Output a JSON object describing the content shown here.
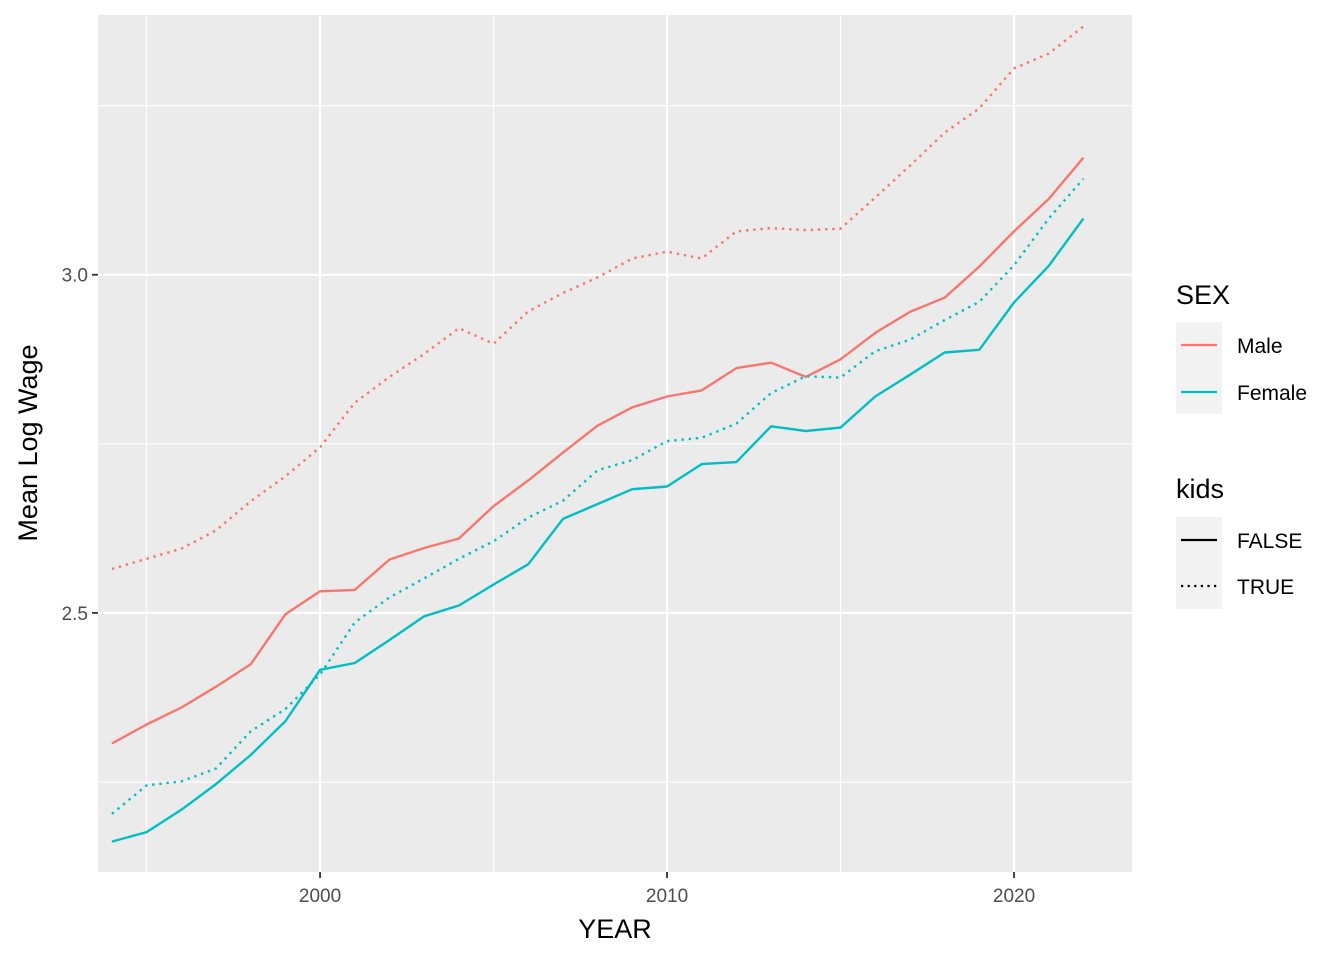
{
  "chart_data": {
    "type": "line",
    "title": "",
    "xlabel": "YEAR",
    "ylabel": "Mean Log Wage",
    "xlim": [
      1993.6,
      2023.4
    ],
    "ylim": [
      2.117,
      3.384
    ],
    "x_major_ticks": [
      2000,
      2010,
      2020
    ],
    "x_minor_ticks": [
      1995,
      2005,
      2015
    ],
    "y_major_ticks": [
      2.5,
      3.0
    ],
    "y_minor_ticks": [
      2.25,
      2.75,
      3.25
    ],
    "x_tick_labels": [
      "2000",
      "2010",
      "2020"
    ],
    "y_tick_labels": [
      "2.5",
      "3.0"
    ],
    "grid": true,
    "x": [
      1994,
      1995,
      1996,
      1997,
      1998,
      1999,
      2000,
      2001,
      2002,
      2003,
      2004,
      2005,
      2006,
      2007,
      2008,
      2009,
      2010,
      2011,
      2012,
      2013,
      2014,
      2015,
      2016,
      2017,
      2018,
      2019,
      2020,
      2021,
      2022
    ],
    "series": [
      {
        "sex": "Male",
        "kids": "FALSE",
        "color": "#F8766D",
        "dash": "solid",
        "values": [
          2.307,
          2.335,
          2.36,
          2.391,
          2.424,
          2.498,
          2.532,
          2.534,
          2.579,
          2.596,
          2.61,
          2.658,
          2.696,
          2.737,
          2.777,
          2.804,
          2.82,
          2.829,
          2.862,
          2.87,
          2.849,
          2.875,
          2.914,
          2.945,
          2.966,
          3.012,
          3.064,
          3.112,
          3.173
        ]
      },
      {
        "sex": "Male",
        "kids": "TRUE",
        "color": "#F8766D",
        "dash": "dotted",
        "values": [
          2.565,
          2.58,
          2.595,
          2.622,
          2.665,
          2.702,
          2.745,
          2.811,
          2.849,
          2.883,
          2.921,
          2.898,
          2.946,
          2.973,
          2.996,
          3.024,
          3.034,
          3.024,
          3.064,
          3.069,
          3.066,
          3.068,
          3.114,
          3.161,
          3.21,
          3.246,
          3.305,
          3.327,
          3.367
        ]
      },
      {
        "sex": "Female",
        "kids": "FALSE",
        "color": "#00BFC4",
        "dash": "solid",
        "values": [
          2.162,
          2.176,
          2.209,
          2.247,
          2.29,
          2.34,
          2.416,
          2.426,
          2.46,
          2.495,
          2.511,
          2.542,
          2.572,
          2.639,
          2.661,
          2.683,
          2.687,
          2.72,
          2.723,
          2.776,
          2.769,
          2.774,
          2.82,
          2.852,
          2.885,
          2.889,
          2.959,
          3.013,
          3.083
        ]
      },
      {
        "sex": "Female",
        "kids": "TRUE",
        "color": "#00BFC4",
        "dash": "dotted",
        "values": [
          2.203,
          2.245,
          2.251,
          2.27,
          2.325,
          2.358,
          2.409,
          2.486,
          2.523,
          2.551,
          2.58,
          2.606,
          2.641,
          2.666,
          2.711,
          2.726,
          2.754,
          2.759,
          2.78,
          2.825,
          2.85,
          2.848,
          2.887,
          2.904,
          2.933,
          2.96,
          3.014,
          3.083,
          3.142
        ]
      }
    ],
    "legends": [
      {
        "title": "SEX",
        "entries": [
          {
            "label": "Male",
            "color": "#F8766D"
          },
          {
            "label": "Female",
            "color": "#00BFC4"
          }
        ]
      },
      {
        "title": "kids",
        "entries": [
          {
            "label": "FALSE",
            "dash": "solid"
          },
          {
            "label": "TRUE",
            "dash": "dotted"
          }
        ]
      }
    ],
    "legend_position": "right"
  }
}
